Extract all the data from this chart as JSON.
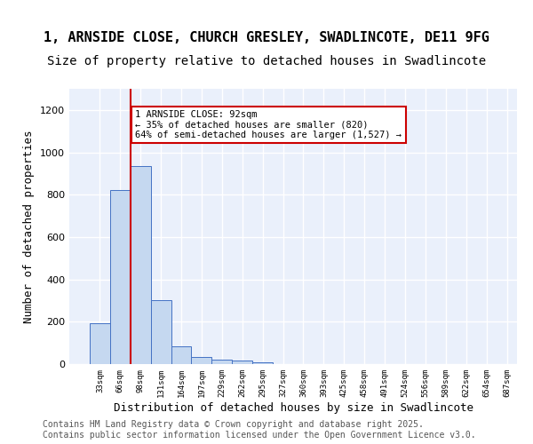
{
  "title_line1": "1, ARNSIDE CLOSE, CHURCH GRESLEY, SWADLINCOTE, DE11 9FG",
  "title_line2": "Size of property relative to detached houses in Swadlincote",
  "xlabel": "Distribution of detached houses by size in Swadlincote",
  "ylabel": "Number of detached properties",
  "bins": [
    "33sqm",
    "66sqm",
    "98sqm",
    "131sqm",
    "164sqm",
    "197sqm",
    "229sqm",
    "262sqm",
    "295sqm",
    "327sqm",
    "360sqm",
    "393sqm",
    "425sqm",
    "458sqm",
    "491sqm",
    "524sqm",
    "556sqm",
    "589sqm",
    "622sqm",
    "654sqm",
    "687sqm"
  ],
  "values": [
    195,
    820,
    935,
    300,
    85,
    35,
    20,
    15,
    10,
    0,
    0,
    0,
    0,
    0,
    0,
    0,
    0,
    0,
    0,
    0
  ],
  "bar_color": "#c5d8f0",
  "bar_edge_color": "#4472c4",
  "vline_x": 2,
  "vline_color": "#cc0000",
  "annotation_text": "1 ARNSIDE CLOSE: 92sqm\n← 35% of detached houses are smaller (820)\n64% of semi-detached houses are larger (1,527) →",
  "annotation_box_color": "#ffffff",
  "annotation_box_edge": "#cc0000",
  "ylim": [
    0,
    1300
  ],
  "yticks": [
    0,
    200,
    400,
    600,
    800,
    1000,
    1200
  ],
  "background_color": "#eaf0fb",
  "footer": "Contains HM Land Registry data © Crown copyright and database right 2025.\nContains public sector information licensed under the Open Government Licence v3.0.",
  "title_fontsize": 11,
  "subtitle_fontsize": 10,
  "xlabel_fontsize": 9,
  "ylabel_fontsize": 9,
  "footer_fontsize": 7
}
